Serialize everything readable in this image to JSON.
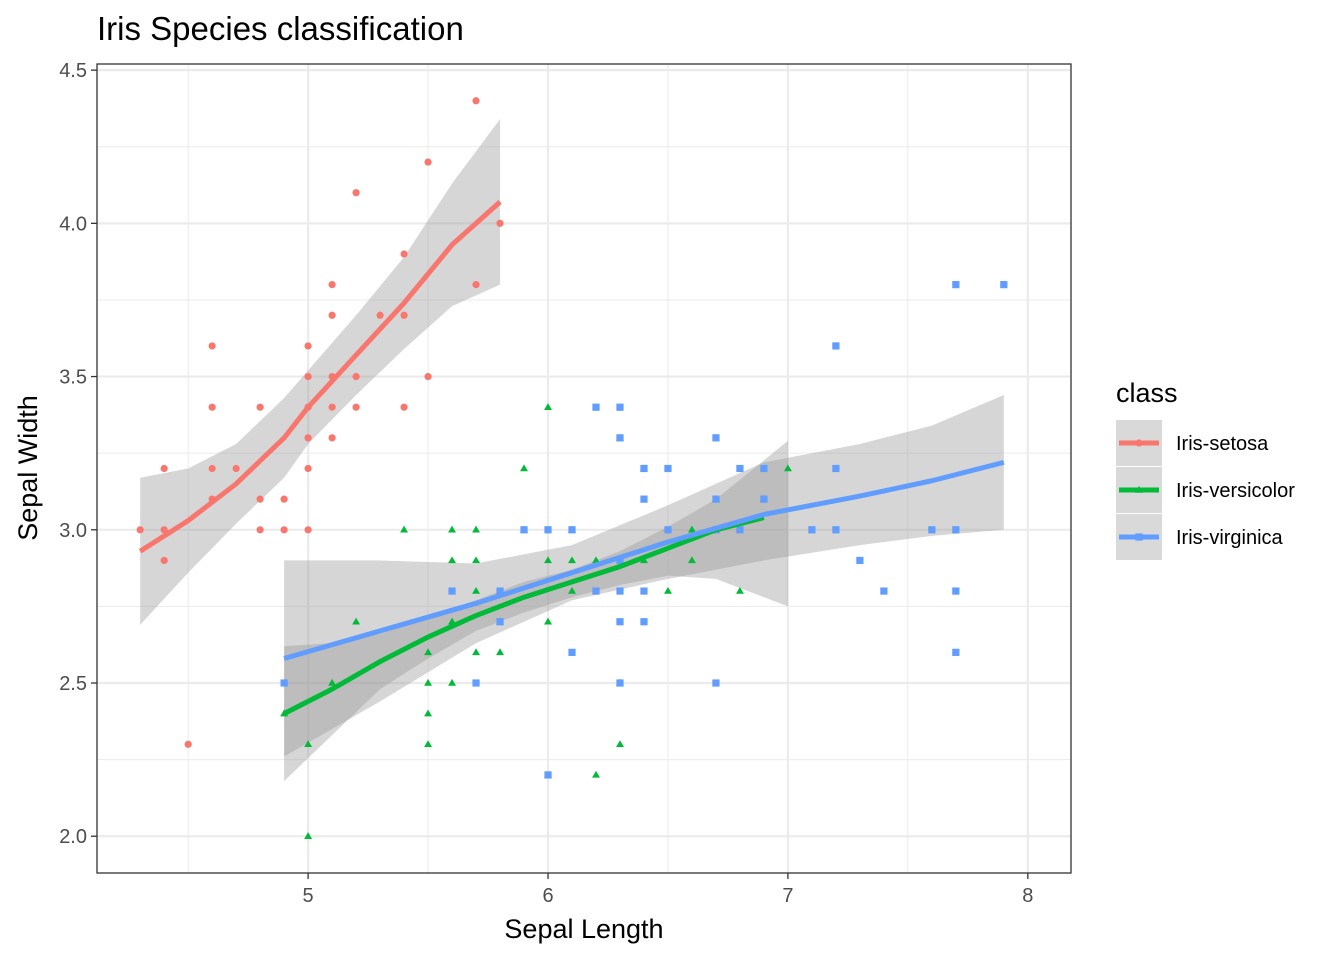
{
  "chart_data": {
    "type": "scatter",
    "title": "Iris Species classification",
    "xlabel": "Sepal Length",
    "ylabel": "Sepal Width",
    "xlim": [
      4.12,
      8.18
    ],
    "ylim": [
      1.88,
      4.52
    ],
    "x_ticks": [
      "5",
      "6",
      "7",
      "8"
    ],
    "y_ticks": [
      "2.0",
      "2.5",
      "3.0",
      "3.5",
      "4.0",
      "4.5"
    ],
    "grid": true,
    "smoother": "loess with confidence band",
    "legend": {
      "title": "class",
      "position": "right"
    },
    "series": [
      {
        "name": "Iris-setosa",
        "color": "#F8766D",
        "marker": "circle",
        "points": [
          [
            4.3,
            3.0
          ],
          [
            4.4,
            2.9
          ],
          [
            4.4,
            3.0
          ],
          [
            4.4,
            3.2
          ],
          [
            4.5,
            2.3
          ],
          [
            4.6,
            3.1
          ],
          [
            4.6,
            3.2
          ],
          [
            4.6,
            3.4
          ],
          [
            4.6,
            3.6
          ],
          [
            4.7,
            3.2
          ],
          [
            4.8,
            3.0
          ],
          [
            4.8,
            3.1
          ],
          [
            4.8,
            3.4
          ],
          [
            4.9,
            3.0
          ],
          [
            4.9,
            3.1
          ],
          [
            5.0,
            3.0
          ],
          [
            5.0,
            3.2
          ],
          [
            5.0,
            3.3
          ],
          [
            5.0,
            3.4
          ],
          [
            5.0,
            3.5
          ],
          [
            5.0,
            3.6
          ],
          [
            5.1,
            3.3
          ],
          [
            5.1,
            3.4
          ],
          [
            5.1,
            3.5
          ],
          [
            5.1,
            3.7
          ],
          [
            5.1,
            3.8
          ],
          [
            5.2,
            3.4
          ],
          [
            5.2,
            3.5
          ],
          [
            5.2,
            4.1
          ],
          [
            5.3,
            3.7
          ],
          [
            5.4,
            3.4
          ],
          [
            5.4,
            3.7
          ],
          [
            5.4,
            3.9
          ],
          [
            5.5,
            3.5
          ],
          [
            5.5,
            4.2
          ],
          [
            5.7,
            3.8
          ],
          [
            5.7,
            4.4
          ],
          [
            5.8,
            4.0
          ]
        ],
        "fit": [
          [
            4.3,
            2.93
          ],
          [
            4.5,
            3.03
          ],
          [
            4.7,
            3.15
          ],
          [
            4.9,
            3.3
          ],
          [
            5.0,
            3.4
          ],
          [
            5.2,
            3.57
          ],
          [
            5.4,
            3.74
          ],
          [
            5.6,
            3.93
          ],
          [
            5.8,
            4.07
          ]
        ],
        "band_upper": [
          [
            4.3,
            3.17
          ],
          [
            4.5,
            3.2
          ],
          [
            4.7,
            3.28
          ],
          [
            4.9,
            3.43
          ],
          [
            5.0,
            3.52
          ],
          [
            5.2,
            3.7
          ],
          [
            5.4,
            3.89
          ],
          [
            5.6,
            4.13
          ],
          [
            5.8,
            4.34
          ]
        ],
        "band_lower": [
          [
            4.3,
            2.69
          ],
          [
            4.5,
            2.86
          ],
          [
            4.7,
            3.02
          ],
          [
            4.9,
            3.17
          ],
          [
            5.0,
            3.28
          ],
          [
            5.2,
            3.44
          ],
          [
            5.4,
            3.59
          ],
          [
            5.6,
            3.73
          ],
          [
            5.8,
            3.8
          ]
        ]
      },
      {
        "name": "Iris-versicolor",
        "color": "#00BA38",
        "marker": "triangle",
        "points": [
          [
            4.9,
            2.4
          ],
          [
            5.0,
            2.0
          ],
          [
            5.0,
            2.3
          ],
          [
            5.1,
            2.5
          ],
          [
            5.2,
            2.7
          ],
          [
            5.4,
            3.0
          ],
          [
            5.5,
            2.3
          ],
          [
            5.5,
            2.4
          ],
          [
            5.5,
            2.5
          ],
          [
            5.5,
            2.6
          ],
          [
            5.6,
            2.5
          ],
          [
            5.6,
            2.7
          ],
          [
            5.6,
            2.9
          ],
          [
            5.6,
            3.0
          ],
          [
            5.7,
            2.6
          ],
          [
            5.7,
            2.8
          ],
          [
            5.7,
            2.9
          ],
          [
            5.7,
            3.0
          ],
          [
            5.8,
            2.6
          ],
          [
            5.8,
            2.7
          ],
          [
            5.9,
            3.0
          ],
          [
            5.9,
            3.2
          ],
          [
            6.0,
            2.2
          ],
          [
            6.0,
            2.7
          ],
          [
            6.0,
            2.9
          ],
          [
            6.0,
            3.4
          ],
          [
            6.1,
            2.8
          ],
          [
            6.1,
            2.9
          ],
          [
            6.1,
            3.0
          ],
          [
            6.2,
            2.2
          ],
          [
            6.2,
            2.9
          ],
          [
            6.3,
            2.3
          ],
          [
            6.3,
            2.5
          ],
          [
            6.3,
            3.3
          ],
          [
            6.4,
            2.9
          ],
          [
            6.4,
            3.2
          ],
          [
            6.5,
            2.8
          ],
          [
            6.6,
            2.9
          ],
          [
            6.6,
            3.0
          ],
          [
            6.7,
            3.0
          ],
          [
            6.7,
            3.1
          ],
          [
            6.8,
            2.8
          ],
          [
            6.9,
            3.1
          ],
          [
            7.0,
            3.2
          ]
        ],
        "fit": [
          [
            4.9,
            2.4
          ],
          [
            5.1,
            2.48
          ],
          [
            5.3,
            2.57
          ],
          [
            5.5,
            2.65
          ],
          [
            5.7,
            2.72
          ],
          [
            5.9,
            2.78
          ],
          [
            6.1,
            2.83
          ],
          [
            6.3,
            2.88
          ],
          [
            6.5,
            2.94
          ],
          [
            6.7,
            3.0
          ],
          [
            6.9,
            3.04
          ]
        ],
        "band_upper": [
          [
            4.9,
            2.62
          ],
          [
            5.1,
            2.63
          ],
          [
            5.3,
            2.66
          ],
          [
            5.5,
            2.71
          ],
          [
            5.7,
            2.77
          ],
          [
            5.9,
            2.83
          ],
          [
            6.1,
            2.87
          ],
          [
            6.3,
            2.93
          ],
          [
            6.5,
            3.01
          ],
          [
            6.7,
            3.1
          ],
          [
            7.0,
            3.29
          ]
        ],
        "band_lower": [
          [
            4.9,
            2.18
          ],
          [
            5.1,
            2.33
          ],
          [
            5.3,
            2.48
          ],
          [
            5.5,
            2.58
          ],
          [
            5.7,
            2.67
          ],
          [
            5.9,
            2.73
          ],
          [
            6.1,
            2.78
          ],
          [
            6.3,
            2.82
          ],
          [
            6.5,
            2.85
          ],
          [
            6.7,
            2.84
          ],
          [
            7.0,
            2.75
          ]
        ]
      },
      {
        "name": "Iris-virginica",
        "color": "#619CFF",
        "marker": "square",
        "points": [
          [
            4.9,
            2.5
          ],
          [
            5.6,
            2.8
          ],
          [
            5.7,
            2.5
          ],
          [
            5.8,
            2.7
          ],
          [
            5.8,
            2.8
          ],
          [
            5.9,
            3.0
          ],
          [
            6.0,
            2.2
          ],
          [
            6.0,
            3.0
          ],
          [
            6.1,
            2.6
          ],
          [
            6.1,
            3.0
          ],
          [
            6.2,
            2.8
          ],
          [
            6.2,
            3.4
          ],
          [
            6.3,
            2.5
          ],
          [
            6.3,
            2.7
          ],
          [
            6.3,
            2.8
          ],
          [
            6.3,
            2.9
          ],
          [
            6.3,
            3.3
          ],
          [
            6.3,
            3.4
          ],
          [
            6.4,
            2.7
          ],
          [
            6.4,
            2.8
          ],
          [
            6.4,
            3.1
          ],
          [
            6.4,
            3.2
          ],
          [
            6.5,
            3.0
          ],
          [
            6.5,
            3.2
          ],
          [
            6.7,
            2.5
          ],
          [
            6.7,
            3.0
          ],
          [
            6.7,
            3.1
          ],
          [
            6.7,
            3.3
          ],
          [
            6.8,
            3.0
          ],
          [
            6.8,
            3.2
          ],
          [
            6.9,
            3.1
          ],
          [
            6.9,
            3.2
          ],
          [
            7.1,
            3.0
          ],
          [
            7.2,
            3.0
          ],
          [
            7.2,
            3.2
          ],
          [
            7.2,
            3.6
          ],
          [
            7.3,
            2.9
          ],
          [
            7.4,
            2.8
          ],
          [
            7.6,
            3.0
          ],
          [
            7.7,
            2.6
          ],
          [
            7.7,
            2.8
          ],
          [
            7.7,
            3.0
          ],
          [
            7.7,
            3.8
          ],
          [
            7.9,
            3.8
          ]
        ],
        "fit": [
          [
            4.9,
            2.58
          ],
          [
            5.3,
            2.67
          ],
          [
            5.7,
            2.76
          ],
          [
            6.1,
            2.86
          ],
          [
            6.5,
            2.96
          ],
          [
            6.9,
            3.05
          ],
          [
            7.3,
            3.11
          ],
          [
            7.6,
            3.16
          ],
          [
            7.9,
            3.22
          ]
        ],
        "band_upper": [
          [
            4.9,
            2.9
          ],
          [
            5.3,
            2.9
          ],
          [
            5.7,
            2.89
          ],
          [
            6.1,
            2.95
          ],
          [
            6.5,
            3.08
          ],
          [
            6.9,
            3.22
          ],
          [
            7.3,
            3.28
          ],
          [
            7.6,
            3.34
          ],
          [
            7.9,
            3.44
          ]
        ],
        "band_lower": [
          [
            4.9,
            2.26
          ],
          [
            5.3,
            2.44
          ],
          [
            5.7,
            2.63
          ],
          [
            6.1,
            2.77
          ],
          [
            6.5,
            2.84
          ],
          [
            6.9,
            2.9
          ],
          [
            7.3,
            2.95
          ],
          [
            7.6,
            2.98
          ],
          [
            7.9,
            3.0
          ]
        ]
      }
    ]
  }
}
